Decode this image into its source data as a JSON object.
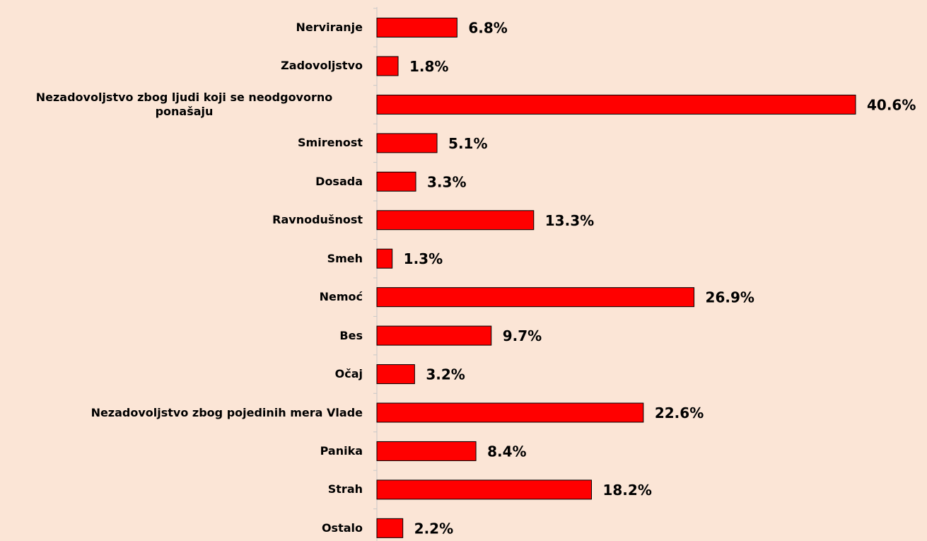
{
  "chart_data": {
    "type": "bar",
    "orientation": "horizontal",
    "color": "#ff0000",
    "categories": [
      "Nerviranje",
      "Zadovoljstvo",
      "Nezadovoljstvo zbog ljudi koji se neodgovorno ponašaju",
      "Smirenost",
      "Dosada",
      "Ravnodušnost",
      "Smeh",
      "Nemoć",
      "Bes",
      "Očaj",
      "Nezadovoljstvo zbog pojedinih mera Vlade",
      "Panika",
      "Strah",
      "Ostalo"
    ],
    "values": [
      6.8,
      1.8,
      40.6,
      5.1,
      3.3,
      13.3,
      1.3,
      26.9,
      9.7,
      3.2,
      22.6,
      8.4,
      18.2,
      2.2
    ],
    "value_labels": [
      "6.8%",
      "1.8%",
      "40.6%",
      "5.1%",
      "3.3%",
      "13.3%",
      "1.3%",
      "26.9%",
      "9.7%",
      "3.2%",
      "22.6%",
      "8.4%",
      "18.2%",
      "2.2%"
    ]
  }
}
